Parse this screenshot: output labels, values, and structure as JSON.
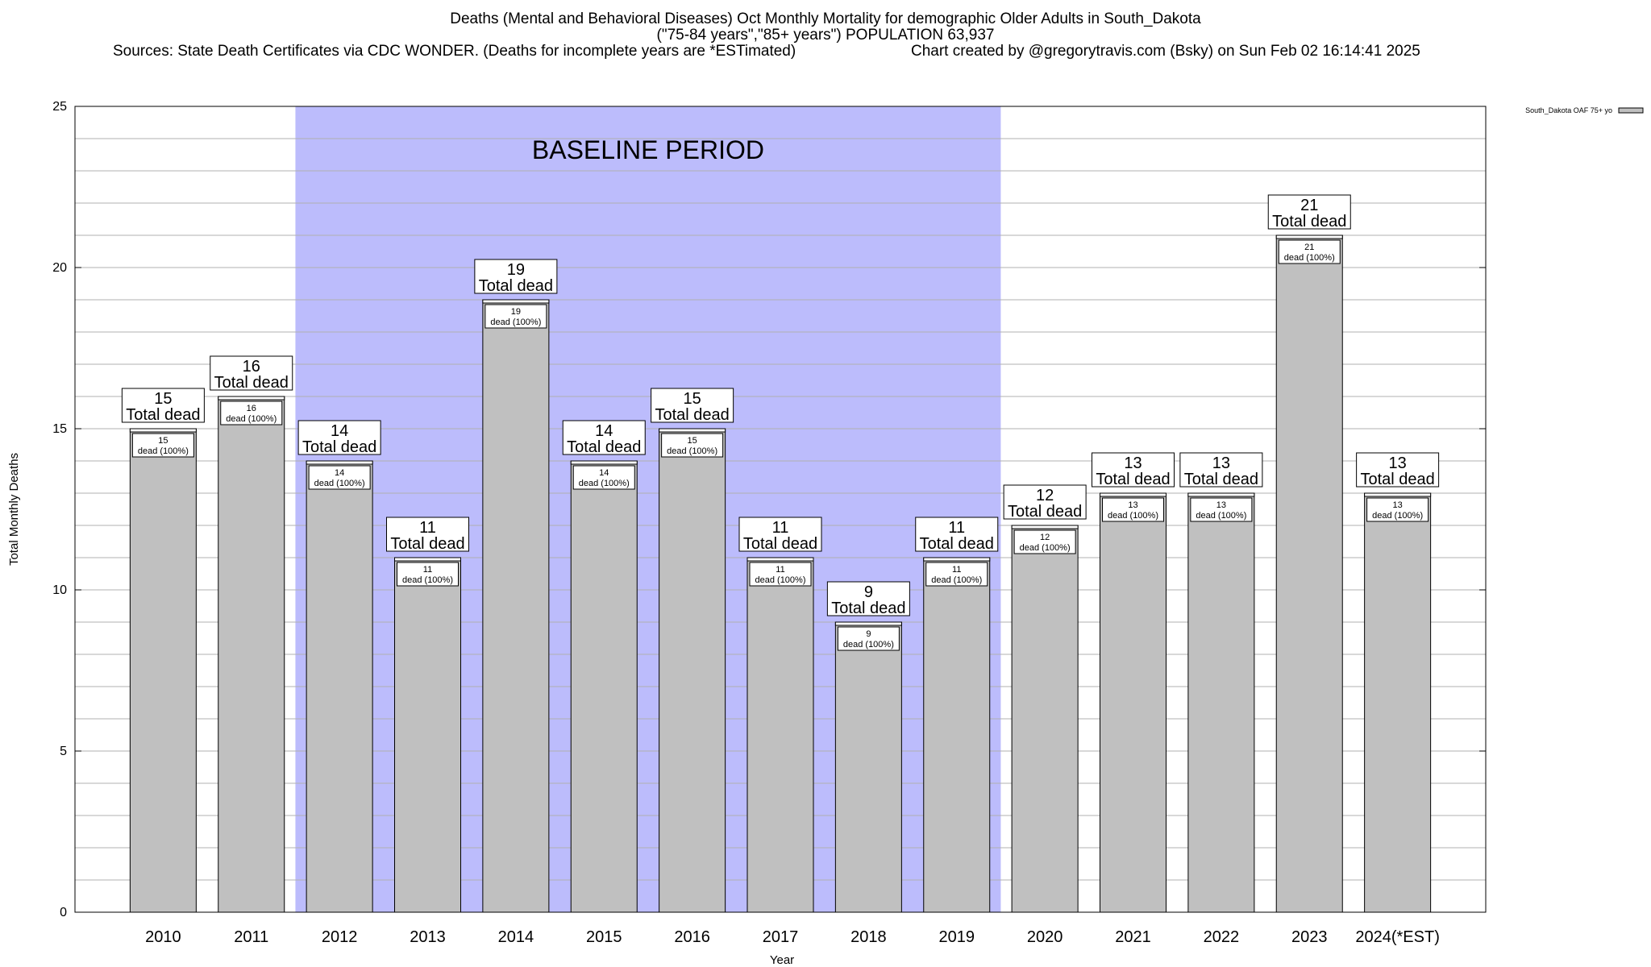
{
  "title": {
    "line1": "Deaths (Mental and Behavioral Diseases) Oct Monthly Mortality for demographic Older Adults in South_Dakota",
    "line2": "(\"75-84 years\",\"85+ years\") POPULATION 63,937",
    "line3": "Sources: State Death Certificates via CDC WONDER. (Deaths for incomplete years are *ESTimated)",
    "line4": "Chart created by @gregorytravis.com (Bsky) on Sun Feb 02 16:14:41 2025"
  },
  "chart_data": {
    "type": "bar",
    "categories": [
      "2010",
      "2011",
      "2012",
      "2013",
      "2014",
      "2015",
      "2016",
      "2017",
      "2018",
      "2019",
      "2020",
      "2021",
      "2022",
      "2023",
      "2024(*EST)"
    ],
    "series": [
      {
        "name": "South_Dakota OAF 75+ yo",
        "values": [
          15,
          16,
          14,
          11,
          19,
          14,
          15,
          11,
          9,
          11,
          12,
          13,
          13,
          21,
          13
        ],
        "color": "#c0c0c0"
      }
    ],
    "xlabel": "Year",
    "ylabel": "Total Monthly Deaths",
    "ylim": [
      0,
      25
    ],
    "yticks": [
      0,
      5,
      10,
      15,
      20,
      25
    ],
    "grid": true,
    "legend_position": "top-right",
    "bar_label_total": "Total dead",
    "bar_label_inner": "dead (100%)",
    "baseline": {
      "label": "BASELINE PERIOD",
      "start_category": "2012",
      "end_category": "2019",
      "color": "#bcbcfc"
    }
  }
}
